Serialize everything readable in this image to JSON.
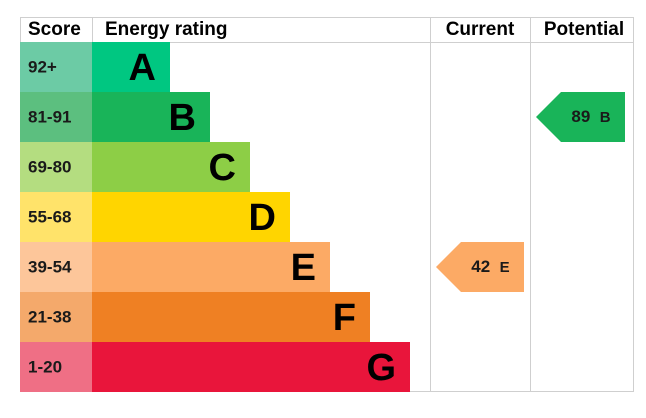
{
  "header": {
    "score": "Score",
    "energy_rating": "Energy rating",
    "current": "Current",
    "potential": "Potential"
  },
  "bands": [
    {
      "score": "92+",
      "rating": "A",
      "color": "#00c781",
      "score_color": "#6ccba5"
    },
    {
      "score": "81-91",
      "rating": "B",
      "color": "#19b459",
      "score_color": "#5cbf7f"
    },
    {
      "score": "69-80",
      "rating": "C",
      "color": "#8dce46",
      "score_color": "#b4dd80"
    },
    {
      "score": "55-68",
      "rating": "D",
      "color": "#ffd500",
      "score_color": "#ffe36a"
    },
    {
      "score": "39-54",
      "rating": "E",
      "color": "#fcaa65",
      "score_color": "#fdc69a"
    },
    {
      "score": "21-38",
      "rating": "F",
      "color": "#ef8023",
      "score_color": "#f4a96b"
    },
    {
      "score": "1-20",
      "rating": "G",
      "color": "#e9153b",
      "score_color": "#ef6f85"
    }
  ],
  "current": {
    "value": 42,
    "rating": "E"
  },
  "potential": {
    "value": 89,
    "rating": "B"
  }
}
